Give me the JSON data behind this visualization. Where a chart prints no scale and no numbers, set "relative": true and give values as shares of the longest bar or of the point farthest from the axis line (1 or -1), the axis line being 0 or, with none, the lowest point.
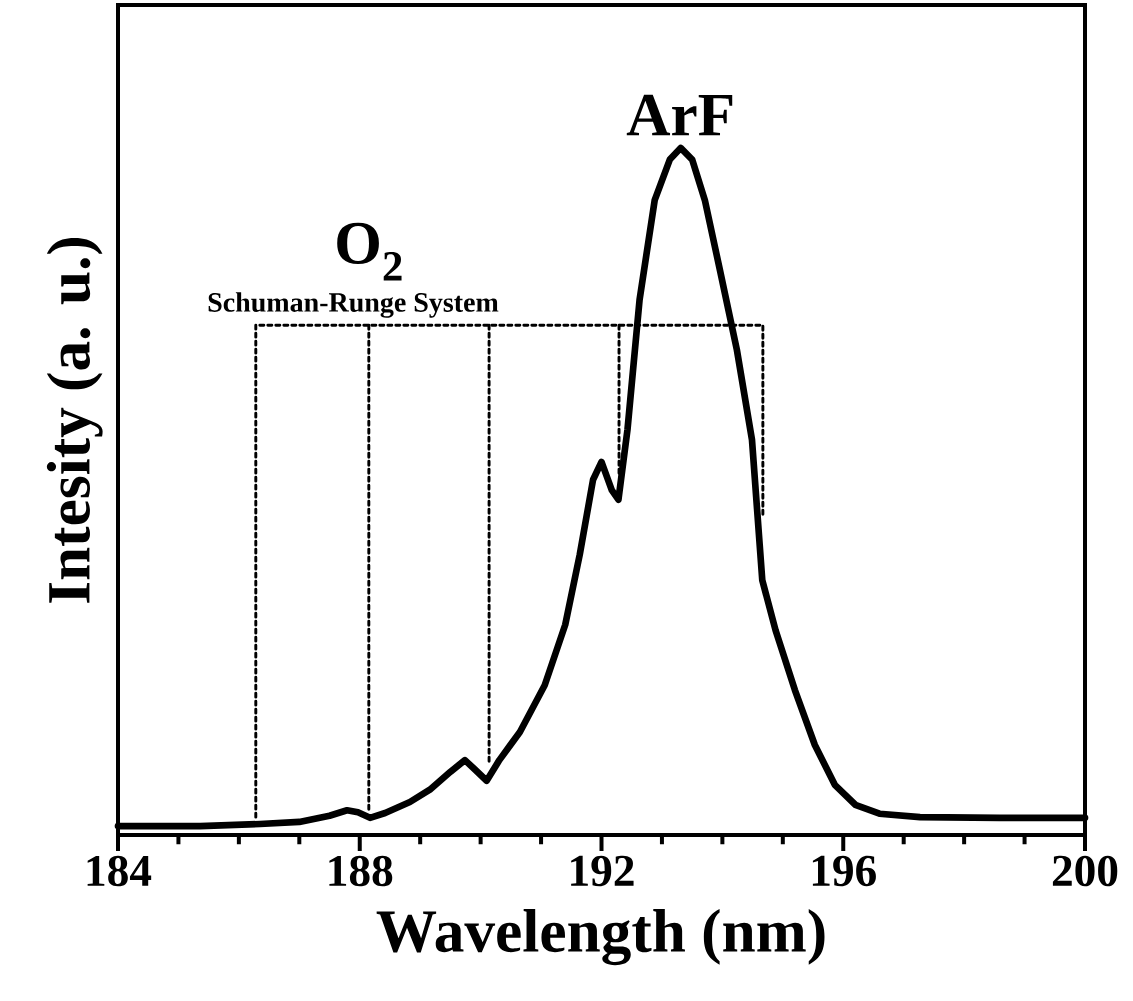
{
  "chart_data": {
    "type": "line",
    "relative": true,
    "xlabel": "Wavelength (nm)",
    "ylabel": "Intesity (a. u.)",
    "xlim": [
      184,
      200
    ],
    "xticks": [
      184,
      188,
      192,
      196,
      200
    ],
    "annotations": [
      "ArF",
      "O$_{2}$",
      "Schuman-Runge System"
    ],
    "series": [
      {
        "color": "#000000",
        "line_style": "solid",
        "x": [
          184.0,
          185.36,
          186.35,
          187.0,
          187.5,
          187.79,
          187.97,
          188.17,
          188.42,
          188.83,
          189.16,
          189.5,
          189.74,
          189.91,
          190.1,
          190.31,
          190.65,
          191.06,
          191.4,
          191.64,
          191.86,
          192.0,
          192.17,
          192.28,
          192.43,
          192.63,
          192.88,
          193.13,
          193.31,
          193.5,
          193.71,
          193.96,
          194.24,
          194.49,
          194.66,
          194.88,
          195.2,
          195.53,
          195.86,
          196.2,
          196.6,
          197.27,
          198.59,
          200.0
        ],
        "values": [
          0.013,
          0.013,
          0.016,
          0.019,
          0.028,
          0.036,
          0.033,
          0.025,
          0.032,
          0.048,
          0.066,
          0.092,
          0.109,
          0.095,
          0.079,
          0.109,
          0.15,
          0.218,
          0.306,
          0.408,
          0.517,
          0.543,
          0.502,
          0.488,
          0.59,
          0.779,
          0.924,
          0.983,
          1.0,
          0.983,
          0.924,
          0.822,
          0.706,
          0.575,
          0.371,
          0.298,
          0.211,
          0.131,
          0.073,
          0.044,
          0.031,
          0.026,
          0.025,
          0.025
        ]
      },
      {
        "color": "#000000",
        "line_style": "dotted",
        "x": [
          186.28,
          186.28,
          194.67,
          194.67
        ],
        "values": [
          0.026,
          0.742,
          0.742,
          0.463
        ]
      },
      {
        "color": "#000000",
        "line_style": "dotted",
        "x": [
          188.15,
          188.15
        ],
        "values": [
          0.742,
          0.033
        ]
      },
      {
        "color": "#000000",
        "line_style": "dotted",
        "x": [
          190.14,
          190.14
        ],
        "values": [
          0.742,
          0.106
        ]
      },
      {
        "color": "#000000",
        "line_style": "dotted",
        "x": [
          192.29,
          192.29
        ],
        "values": [
          0.742,
          0.524
        ]
      }
    ]
  }
}
